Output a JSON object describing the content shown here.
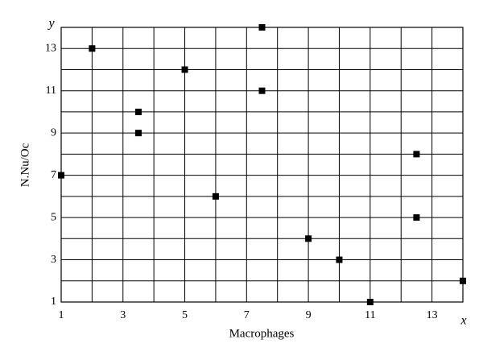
{
  "chart_data": {
    "type": "scatter",
    "x_label": "Macrophages",
    "y_label": "N.Nu/Oc",
    "x_axis_symbol": "x",
    "y_axis_symbol": "y",
    "x": [
      1,
      2,
      3.5,
      3.5,
      5,
      6,
      7.5,
      7.5,
      9,
      10,
      11,
      12.5,
      12.5,
      14
    ],
    "values": [
      7,
      13,
      10,
      9,
      12,
      6,
      14,
      11,
      4,
      3,
      1,
      8,
      5,
      2
    ],
    "color": "#000000",
    "xlim": [
      1,
      14
    ],
    "ylim": [
      1,
      14
    ],
    "xticks": [
      1,
      3,
      5,
      7,
      9,
      11,
      13
    ],
    "yticks": [
      1,
      3,
      5,
      7,
      9,
      11,
      13
    ],
    "xminor_ticks": [
      2,
      4,
      6,
      8,
      10,
      12,
      14
    ],
    "yminor_ticks": [
      2,
      4,
      6,
      8,
      10,
      12,
      14
    ],
    "grid": true
  }
}
